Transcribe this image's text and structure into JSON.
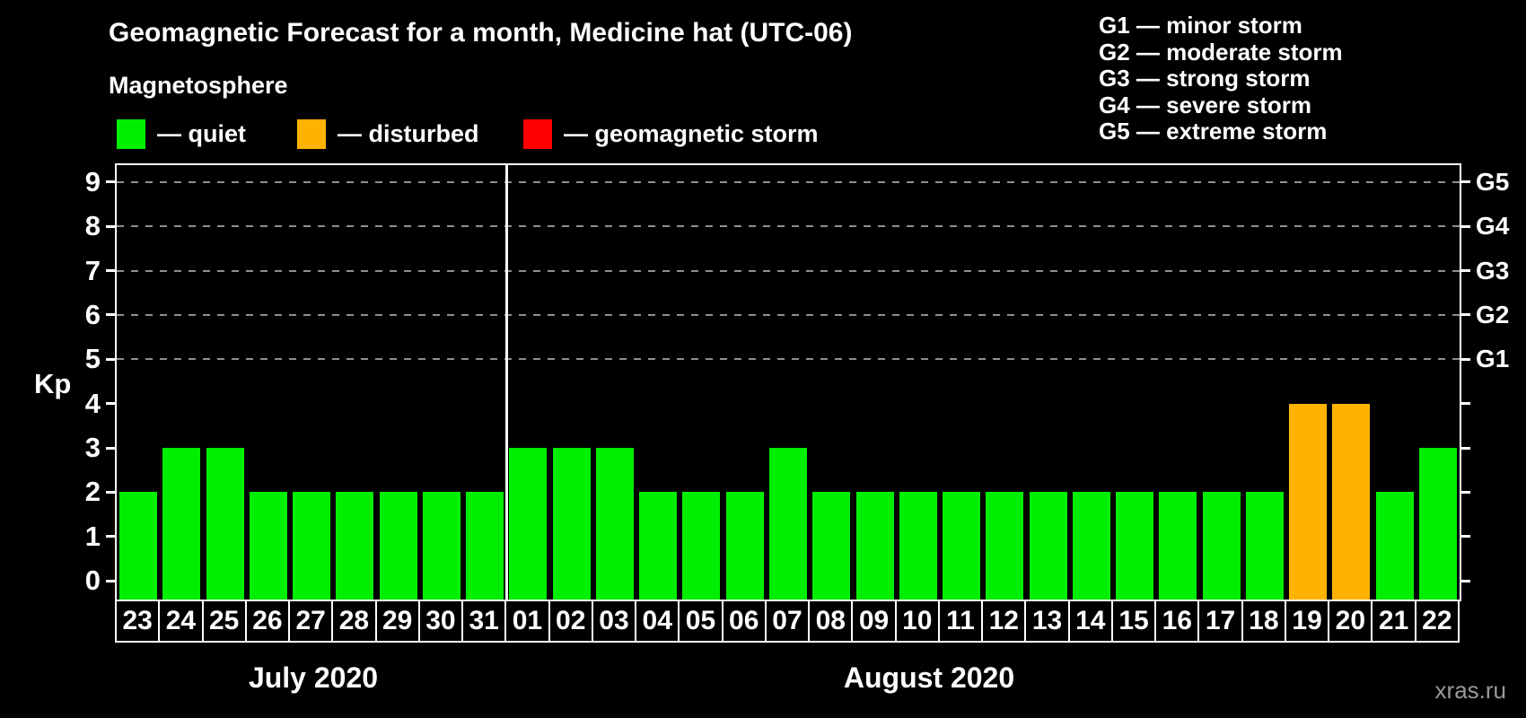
{
  "title": "Geomagnetic Forecast for a month, Medicine hat (UTC-06)",
  "subtitle": "Magnetosphere",
  "watermark": "xras.ru",
  "colors": {
    "quiet": "#00ee00",
    "disturbed": "#ffb300",
    "storm": "#ff0000",
    "gridline": "#8f8f8f",
    "axis": "#ffffff",
    "background": "#000000"
  },
  "legend": {
    "items": [
      {
        "name": "quiet",
        "label": "— quiet",
        "color": "#00ee00"
      },
      {
        "name": "disturbed",
        "label": "— disturbed",
        "color": "#ffb300"
      },
      {
        "name": "storm",
        "label": "— geomagnetic storm",
        "color": "#ff0000"
      }
    ]
  },
  "storm_scale_legend": {
    "lines": [
      "G1 — minor storm",
      "G2 — moderate storm",
      "G3 — strong storm",
      "G4 — severe storm",
      "G5 — extreme storm"
    ]
  },
  "chart_data": {
    "type": "bar",
    "title": "Geomagnetic Forecast for a month, Medicine hat (UTC-06)",
    "xlabel": "",
    "ylabel": "Kp",
    "ylim": [
      -0.42,
      9.38
    ],
    "y_ticks": [
      0,
      1,
      2,
      3,
      4,
      5,
      6,
      7,
      8,
      9
    ],
    "gridlines_at": [
      5,
      6,
      7,
      8,
      9
    ],
    "grid_style": "dashed horizontal lines at storm levels G1–G5",
    "legend_position": "top-left",
    "right_axis_labels": [
      {
        "kp": 5,
        "label": "G1"
      },
      {
        "kp": 6,
        "label": "G2"
      },
      {
        "kp": 7,
        "label": "G3"
      },
      {
        "kp": 8,
        "label": "G4"
      },
      {
        "kp": 9,
        "label": "G5"
      }
    ],
    "months": [
      {
        "label": "July 2020",
        "days": [
          {
            "day": "23",
            "kp": 2,
            "status": "quiet"
          },
          {
            "day": "24",
            "kp": 3,
            "status": "quiet"
          },
          {
            "day": "25",
            "kp": 3,
            "status": "quiet"
          },
          {
            "day": "26",
            "kp": 2,
            "status": "quiet"
          },
          {
            "day": "27",
            "kp": 2,
            "status": "quiet"
          },
          {
            "day": "28",
            "kp": 2,
            "status": "quiet"
          },
          {
            "day": "29",
            "kp": 2,
            "status": "quiet"
          },
          {
            "day": "30",
            "kp": 2,
            "status": "quiet"
          },
          {
            "day": "31",
            "kp": 2,
            "status": "quiet"
          }
        ]
      },
      {
        "label": "August 2020",
        "days": [
          {
            "day": "01",
            "kp": 3,
            "status": "quiet"
          },
          {
            "day": "02",
            "kp": 3,
            "status": "quiet"
          },
          {
            "day": "03",
            "kp": 3,
            "status": "quiet"
          },
          {
            "day": "04",
            "kp": 2,
            "status": "quiet"
          },
          {
            "day": "05",
            "kp": 2,
            "status": "quiet"
          },
          {
            "day": "06",
            "kp": 2,
            "status": "quiet"
          },
          {
            "day": "07",
            "kp": 3,
            "status": "quiet"
          },
          {
            "day": "08",
            "kp": 2,
            "status": "quiet"
          },
          {
            "day": "09",
            "kp": 2,
            "status": "quiet"
          },
          {
            "day": "10",
            "kp": 2,
            "status": "quiet"
          },
          {
            "day": "11",
            "kp": 2,
            "status": "quiet"
          },
          {
            "day": "12",
            "kp": 2,
            "status": "quiet"
          },
          {
            "day": "13",
            "kp": 2,
            "status": "quiet"
          },
          {
            "day": "14",
            "kp": 2,
            "status": "quiet"
          },
          {
            "day": "15",
            "kp": 2,
            "status": "quiet"
          },
          {
            "day": "16",
            "kp": 2,
            "status": "quiet"
          },
          {
            "day": "17",
            "kp": 2,
            "status": "quiet"
          },
          {
            "day": "18",
            "kp": 2,
            "status": "quiet"
          },
          {
            "day": "19",
            "kp": 4,
            "status": "disturbed"
          },
          {
            "day": "20",
            "kp": 4,
            "status": "disturbed"
          },
          {
            "day": "21",
            "kp": 2,
            "status": "quiet"
          },
          {
            "day": "22",
            "kp": 3,
            "status": "quiet"
          }
        ]
      }
    ]
  }
}
